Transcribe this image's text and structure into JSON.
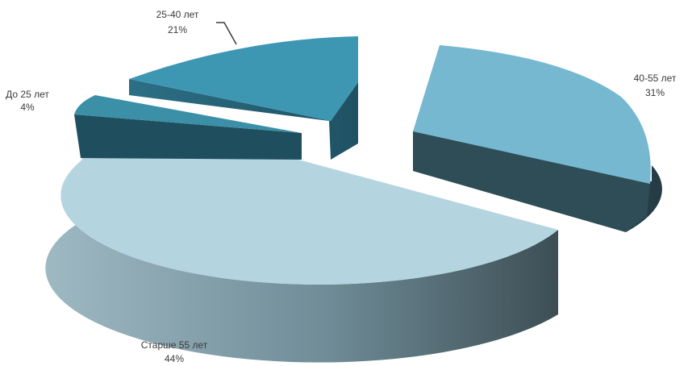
{
  "chart_data": {
    "type": "pie",
    "title": "",
    "legend": "none",
    "slices": [
      {
        "label": "До 25 лет",
        "value": 4,
        "value_label": "4%",
        "color": "#3b8fa6",
        "side_color": "#1f4f5e"
      },
      {
        "label": "25-40 лет",
        "value": 21,
        "value_label": "21%",
        "color": "#3d97b3",
        "side_color": "#2a6e83"
      },
      {
        "label": "40-55 лет",
        "value": 31,
        "value_label": "31%",
        "color": "#76b8d0",
        "side_color": "#2e4d57"
      },
      {
        "label": "Старше 55 лет",
        "value": 44,
        "value_label": "44%",
        "color": "#b4d4e0",
        "side_color": "#6f8c97"
      }
    ]
  }
}
